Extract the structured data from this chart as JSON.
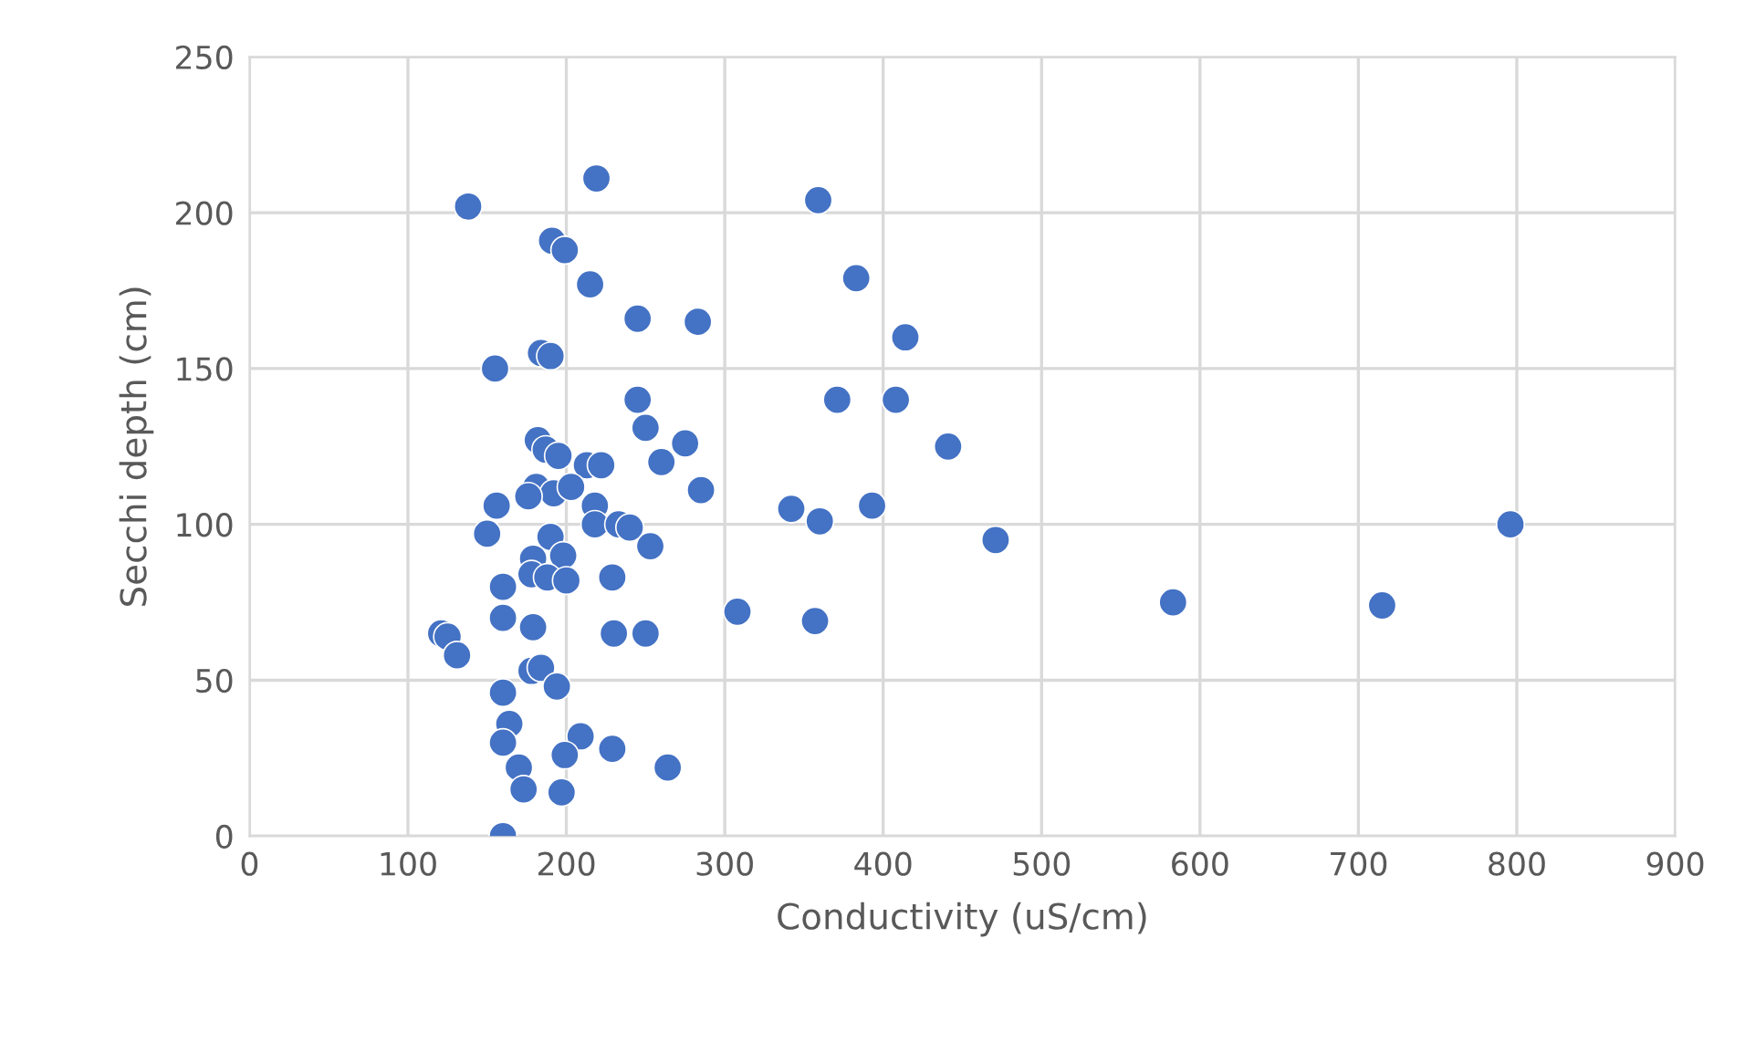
{
  "chart_data": {
    "type": "scatter",
    "xlabel": "Conductivity (uS/cm)",
    "ylabel": "Secchi depth (cm)",
    "xlim": [
      0,
      900
    ],
    "xticks": [
      0,
      100,
      200,
      300,
      400,
      500,
      600,
      700,
      800,
      900
    ],
    "ylim": [
      0,
      250
    ],
    "yticks": [
      0,
      50,
      100,
      150,
      200,
      250
    ],
    "grid": true,
    "marker": "circle",
    "series": [
      {
        "color": "#4472c4",
        "x": [
          138,
          219,
          359,
          191,
          199,
          215,
          383,
          245,
          283,
          414,
          184,
          190,
          155,
          245,
          371,
          408,
          250,
          441,
          182,
          187,
          195,
          275,
          213,
          222,
          260,
          181,
          192,
          176,
          203,
          285,
          156,
          218,
          342,
          393,
          360,
          150,
          218,
          233,
          240,
          190,
          253,
          471,
          796,
          179,
          198,
          178,
          188,
          200,
          229,
          160,
          583,
          715,
          308,
          357,
          160,
          179,
          121,
          125,
          131,
          230,
          250,
          178,
          184,
          194,
          160,
          164,
          160,
          209,
          199,
          229,
          170,
          264,
          173,
          197,
          160
        ],
        "values": [
          202,
          211,
          204,
          191,
          188,
          177,
          179,
          166,
          165,
          160,
          155,
          154,
          150,
          140,
          140,
          140,
          131,
          125,
          127,
          124,
          122,
          126,
          119,
          119,
          120,
          112,
          110,
          109,
          112,
          111,
          106,
          106,
          105,
          106,
          101,
          97,
          100,
          100,
          99,
          96,
          93,
          95,
          100,
          89,
          90,
          84,
          83,
          82,
          83,
          80,
          75,
          74,
          72,
          69,
          70,
          67,
          65,
          64,
          58,
          65,
          65,
          53,
          54,
          48,
          46,
          36,
          30,
          32,
          26,
          28,
          22,
          22,
          15,
          14,
          0
        ]
      }
    ]
  }
}
